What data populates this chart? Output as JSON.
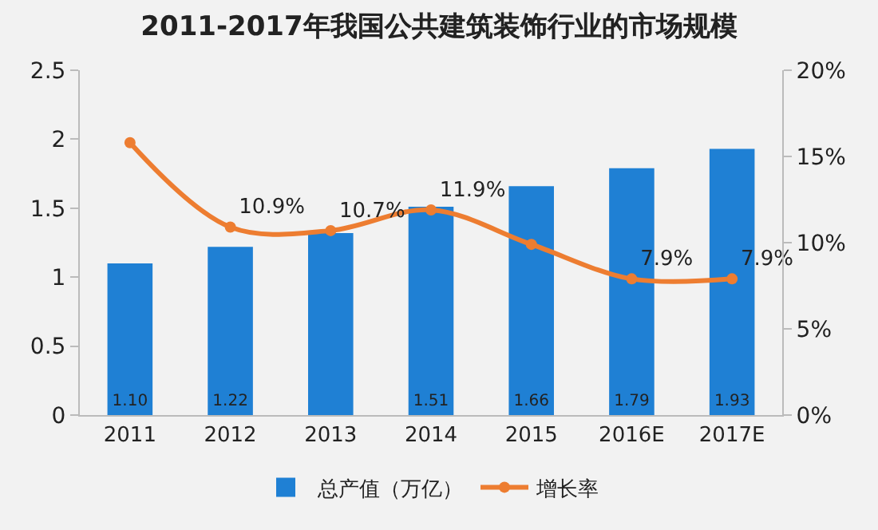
{
  "chart_data": {
    "type": "bar",
    "title": "2011-2017年我国公共建筑装饰行业的市场规模",
    "categories": [
      "2011",
      "2012",
      "2013",
      "2014",
      "2015",
      "2016E",
      "2017E"
    ],
    "series": [
      {
        "name": "总产值（万亿）",
        "color": "#1f80d4",
        "values": [
          1.1,
          1.22,
          1.32,
          1.51,
          1.66,
          1.79,
          1.93
        ],
        "value_labels": [
          "1.10",
          "1.22",
          null,
          "1.51",
          "1.66",
          "1.79",
          "1.93"
        ]
      },
      {
        "name": "增长率",
        "type": "line",
        "axis": "y2",
        "color": "#ed7d31",
        "values": [
          15.8,
          10.9,
          10.7,
          11.9,
          9.9,
          7.9,
          7.9
        ],
        "value_labels": [
          null,
          "10.9%",
          "10.7%",
          "11.9%",
          null,
          "7.9%",
          "7.9%"
        ]
      }
    ],
    "ylim": [
      0,
      2.5
    ],
    "yticks": [
      0,
      0.5,
      1,
      1.5,
      2,
      2.5
    ],
    "y2lim": [
      0,
      20
    ],
    "y2ticks": [
      {
        "value": 0,
        "label": "0%"
      },
      {
        "value": 5,
        "label": "5%"
      },
      {
        "value": 10,
        "label": "10%"
      },
      {
        "value": 15,
        "label": "15%"
      },
      {
        "value": 20,
        "label": "20%"
      }
    ],
    "grid": false,
    "legend": "bottom",
    "marker": "circle",
    "line_style": "solid"
  }
}
